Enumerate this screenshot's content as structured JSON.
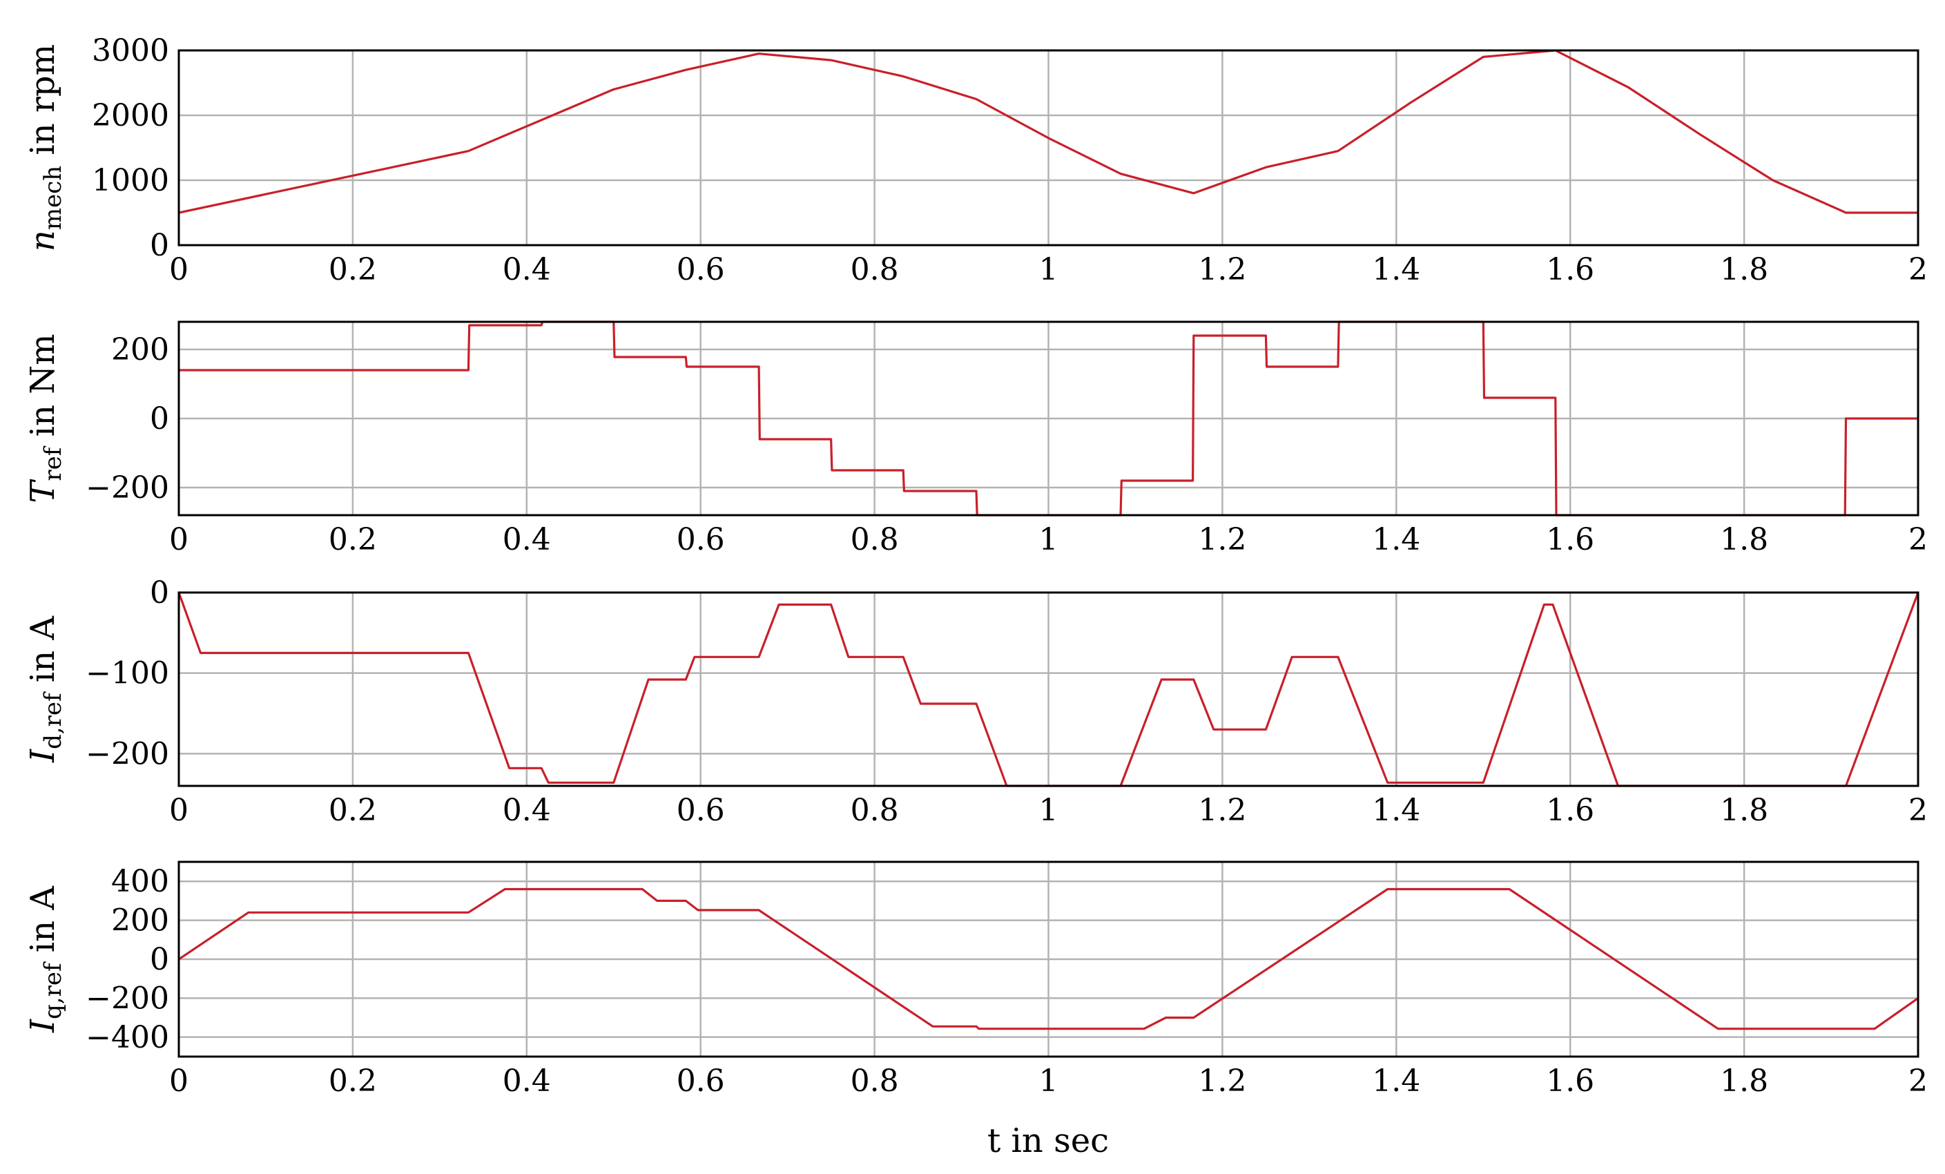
{
  "figure": {
    "xlabel": "t in sec"
  },
  "chart_data": [
    {
      "type": "line",
      "ylabel": {
        "symbol": "n",
        "sub": "mech",
        "unit": " in rpm"
      },
      "xlim": [
        0,
        2
      ],
      "ylim": [
        0,
        3000
      ],
      "x_ticks": [
        0,
        0.2,
        0.4,
        0.6,
        0.8,
        1,
        1.2,
        1.4,
        1.6,
        1.8,
        2
      ],
      "x_tick_labels": [
        "0",
        "0.2",
        "0.4",
        "0.6",
        "0.8",
        "1",
        "1.2",
        "1.4",
        "1.6",
        "1.8",
        "2"
      ],
      "y_ticks": [
        0,
        1000,
        2000,
        3000
      ],
      "y_tick_labels": [
        "0",
        "1000",
        "2000",
        "3000"
      ],
      "grid": true,
      "color": "#c8202a",
      "series": [
        {
          "x": [
            0,
            0.333,
            0.5,
            0.583,
            0.667,
            0.75,
            0.833,
            0.917,
            1.0,
            1.083,
            1.167,
            1.25,
            1.333,
            1.417,
            1.5,
            1.583,
            1.667,
            1.75,
            1.833,
            1.917,
            2.0
          ],
          "y": [
            500,
            1450,
            2400,
            2700,
            2950,
            2850,
            2600,
            2250,
            1650,
            1100,
            800,
            1200,
            1450,
            2200,
            2900,
            3000,
            2430,
            1700,
            1000,
            500,
            500
          ]
        }
      ]
    },
    {
      "type": "line",
      "ylabel": {
        "symbol": "T",
        "sub": "ref",
        "unit": " in Nm"
      },
      "xlim": [
        0,
        2
      ],
      "ylim": [
        -280,
        280
      ],
      "x_ticks": [
        0,
        0.2,
        0.4,
        0.6,
        0.8,
        1,
        1.2,
        1.4,
        1.6,
        1.8,
        2
      ],
      "x_tick_labels": [
        "0",
        "0.2",
        "0.4",
        "0.6",
        "0.8",
        "1",
        "1.2",
        "1.4",
        "1.6",
        "1.8",
        "2"
      ],
      "y_ticks": [
        -200,
        0,
        200
      ],
      "y_tick_labels": [
        "−200",
        "0",
        "200"
      ],
      "grid": true,
      "color": "#c8202a",
      "series": [
        {
          "x": [
            0,
            0.333,
            0.334,
            0.417,
            0.418,
            0.5,
            0.501,
            0.583,
            0.584,
            0.667,
            0.668,
            0.75,
            0.751,
            0.833,
            0.834,
            0.917,
            0.918,
            1.083,
            1.084,
            1.166,
            1.167,
            1.25,
            1.251,
            1.333,
            1.334,
            1.5,
            1.501,
            1.583,
            1.584,
            1.916,
            1.917,
            2.0
          ],
          "y": [
            140,
            140,
            270,
            270,
            280,
            280,
            178,
            178,
            150,
            150,
            -60,
            -60,
            -150,
            -150,
            -210,
            -210,
            -280,
            -280,
            -180,
            -180,
            240,
            240,
            150,
            150,
            280,
            280,
            60,
            60,
            -280,
            -280,
            0,
            0
          ]
        }
      ]
    },
    {
      "type": "line",
      "ylabel": {
        "symbol": "I",
        "sub": "d,ref",
        "unit": " in A"
      },
      "xlim": [
        0,
        2
      ],
      "ylim": [
        -240,
        0
      ],
      "x_ticks": [
        0,
        0.2,
        0.4,
        0.6,
        0.8,
        1,
        1.2,
        1.4,
        1.6,
        1.8,
        2
      ],
      "x_tick_labels": [
        "0",
        "0.2",
        "0.4",
        "0.6",
        "0.8",
        "1",
        "1.2",
        "1.4",
        "1.6",
        "1.8",
        "2"
      ],
      "y_ticks": [
        -200,
        -100,
        0
      ],
      "y_tick_labels": [
        "−200",
        "−100",
        "0"
      ],
      "grid": true,
      "color": "#c8202a",
      "series": [
        {
          "x": [
            0,
            0.025,
            0.333,
            0.38,
            0.417,
            0.425,
            0.5,
            0.54,
            0.583,
            0.593,
            0.667,
            0.69,
            0.75,
            0.77,
            0.833,
            0.853,
            0.917,
            0.952,
            1.083,
            1.13,
            1.167,
            1.19,
            1.25,
            1.28,
            1.333,
            1.39,
            1.5,
            1.57,
            1.58,
            1.655,
            1.917,
            2.0
          ],
          "y": [
            0,
            -75,
            -75,
            -218,
            -218,
            -236,
            -236,
            -108,
            -108,
            -80,
            -80,
            -15,
            -15,
            -80,
            -80,
            -138,
            -138,
            -240,
            -240,
            -108,
            -108,
            -170,
            -170,
            -80,
            -80,
            -236,
            -236,
            -15,
            -15,
            -240,
            -240,
            0
          ]
        }
      ]
    },
    {
      "type": "line",
      "ylabel": {
        "symbol": "I",
        "sub": "q,ref",
        "unit": " in A"
      },
      "xlim": [
        0,
        2
      ],
      "ylim": [
        -500,
        500
      ],
      "x_ticks": [
        0,
        0.2,
        0.4,
        0.6,
        0.8,
        1,
        1.2,
        1.4,
        1.6,
        1.8,
        2
      ],
      "x_tick_labels": [
        "0",
        "0.2",
        "0.4",
        "0.6",
        "0.8",
        "1",
        "1.2",
        "1.4",
        "1.6",
        "1.8",
        "2"
      ],
      "y_ticks": [
        -400,
        -200,
        0,
        200,
        400
      ],
      "y_tick_labels": [
        "−400",
        "−200",
        "0",
        "200",
        "400"
      ],
      "grid": true,
      "color": "#c8202a",
      "series": [
        {
          "x": [
            0,
            0.08,
            0.333,
            0.375,
            0.533,
            0.55,
            0.583,
            0.597,
            0.667,
            0.867,
            0.917,
            0.92,
            1.11,
            1.135,
            1.167,
            1.39,
            1.53,
            1.77,
            1.95,
            2.0
          ],
          "y": [
            0,
            240,
            240,
            360,
            360,
            300,
            300,
            252,
            252,
            -345,
            -345,
            -357,
            -357,
            -300,
            -300,
            360,
            360,
            -357,
            -357,
            -200
          ]
        }
      ]
    }
  ]
}
